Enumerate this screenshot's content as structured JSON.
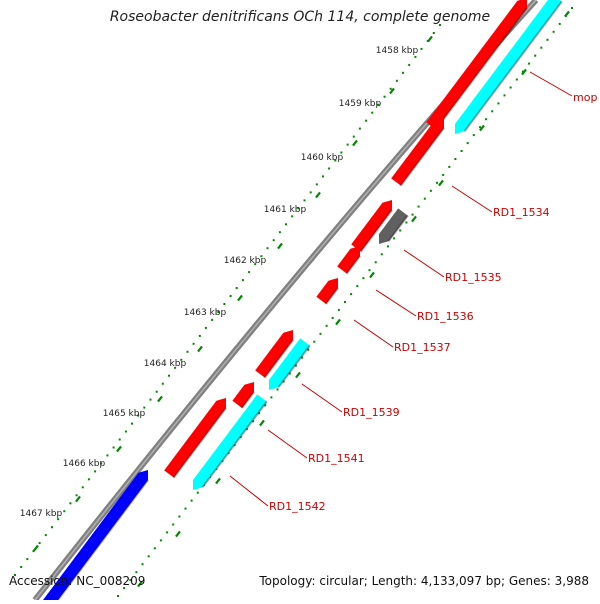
{
  "title": "Roseobacter denitrificans OCh 114, complete genome",
  "footer": {
    "accession": "Accession: NC_008209",
    "summary": "Topology: circular; Length: 4,133,097 bp; Genes: 3,988"
  },
  "scale_labels": [
    "1458 kbp",
    "1459 kbp",
    "1460 kbp",
    "1461 kbp",
    "1462 kbp",
    "1463 kbp",
    "1464 kbp",
    "1465 kbp",
    "1466 kbp",
    "1467 kbp"
  ],
  "gene_labels": [
    "mop",
    "RD1_1534",
    "RD1_1535",
    "RD1_1536",
    "RD1_1537",
    "RD1_1539",
    "RD1_1541",
    "RD1_1542"
  ],
  "colors": {
    "forward_gene": "#ff0000",
    "cds_cyan": "#00ffff",
    "reverse_gene": "#0000ff",
    "other_gene": "#606060",
    "backbone": "#808080",
    "ticks": "#008800",
    "label_text": "#cc0000"
  }
}
